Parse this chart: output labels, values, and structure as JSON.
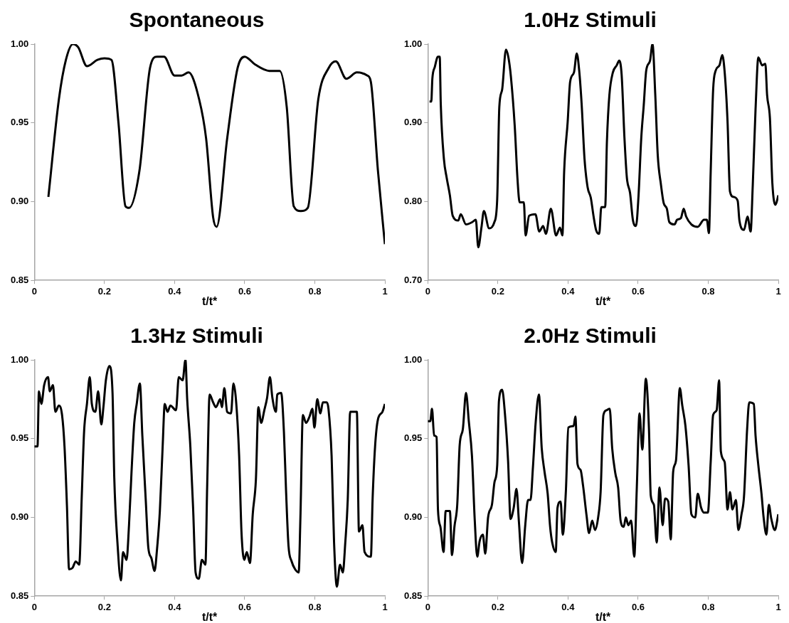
{
  "chart_data": [
    {
      "type": "line",
      "title": "Spontaneous",
      "xlabel": "t/t*",
      "color": "#000000",
      "marker": "none",
      "grid": false,
      "xlim": [
        0,
        1
      ],
      "xticks": [
        0,
        0.2,
        0.4,
        0.6,
        0.8,
        1
      ],
      "ylim": [
        0.85,
        1.0
      ],
      "yticks": [
        {
          "value": 0.85,
          "label": "0.85"
        },
        {
          "value": 0.9,
          "label": "0.90"
        },
        {
          "value": 0.95,
          "label": "0.95"
        },
        {
          "value": 1.0,
          "label": "1.00"
        }
      ],
      "x": [
        0.04,
        0.07,
        0.09,
        0.11,
        0.125,
        0.15,
        0.18,
        0.2,
        0.22,
        0.24,
        0.26,
        0.27,
        0.3,
        0.33,
        0.35,
        0.37,
        0.4,
        0.42,
        0.44,
        0.47,
        0.49,
        0.51,
        0.52,
        0.55,
        0.58,
        0.6,
        0.63,
        0.67,
        0.7,
        0.72,
        0.74,
        0.76,
        0.78,
        0.81,
        0.84,
        0.86,
        0.89,
        0.92,
        0.95,
        0.96,
        0.98,
        1.0
      ],
      "values": [
        0.903,
        0.965,
        0.99,
        1.0,
        0.998,
        0.986,
        0.99,
        0.991,
        0.99,
        0.95,
        0.897,
        0.896,
        0.92,
        0.985,
        0.992,
        0.992,
        0.98,
        0.98,
        0.982,
        0.965,
        0.94,
        0.89,
        0.884,
        0.94,
        0.985,
        0.992,
        0.987,
        0.983,
        0.983,
        0.96,
        0.897,
        0.894,
        0.896,
        0.965,
        0.985,
        0.989,
        0.978,
        0.982,
        0.98,
        0.976,
        0.92,
        0.873
      ]
    },
    {
      "type": "line",
      "title": "1.0Hz Stimuli",
      "xlabel": "t/t*",
      "color": "#000000",
      "marker": "none",
      "grid": false,
      "xlim": [
        0,
        1
      ],
      "xticks": [
        0,
        0.2,
        0.4,
        0.6,
        0.8,
        1
      ],
      "ylim": [
        0.7,
        1.0
      ],
      "yticks": [
        {
          "value": 0.7,
          "label": "0.70"
        },
        {
          "value": 0.8,
          "label": "0.80"
        },
        {
          "value": 0.9,
          "label": "0.90"
        },
        {
          "value": 1.0,
          "label": "1.00"
        }
      ],
      "x": [
        0.005,
        0.01,
        0.013,
        0.02,
        0.029,
        0.034,
        0.037,
        0.046,
        0.054,
        0.063,
        0.071,
        0.087,
        0.094,
        0.109,
        0.127,
        0.137,
        0.144,
        0.153,
        0.16,
        0.175,
        0.19,
        0.198,
        0.204,
        0.212,
        0.223,
        0.23,
        0.237,
        0.248,
        0.256,
        0.262,
        0.274,
        0.279,
        0.289,
        0.307,
        0.318,
        0.329,
        0.337,
        0.351,
        0.366,
        0.377,
        0.384,
        0.389,
        0.399,
        0.406,
        0.417,
        0.425,
        0.432,
        0.439,
        0.447,
        0.456,
        0.465,
        0.473,
        0.48,
        0.489,
        0.495,
        0.506,
        0.511,
        0.518,
        0.528,
        0.539,
        0.546,
        0.553,
        0.561,
        0.568,
        0.577,
        0.585,
        0.594,
        0.601,
        0.609,
        0.616,
        0.623,
        0.634,
        0.641,
        0.649,
        0.656,
        0.665,
        0.673,
        0.682,
        0.689,
        0.704,
        0.711,
        0.722,
        0.73,
        0.737,
        0.752,
        0.77,
        0.788,
        0.796,
        0.802,
        0.807,
        0.814,
        0.821,
        0.832,
        0.84,
        0.847,
        0.855,
        0.862,
        0.872,
        0.884,
        0.889,
        0.902,
        0.912,
        0.921,
        0.927,
        0.935,
        0.943,
        0.954,
        0.963,
        0.968,
        0.976,
        0.983,
        0.992,
        1.0
      ],
      "values": [
        0.927,
        0.927,
        0.956,
        0.971,
        0.984,
        0.984,
        0.924,
        0.854,
        0.83,
        0.808,
        0.782,
        0.776,
        0.784,
        0.771,
        0.774,
        0.777,
        0.742,
        0.767,
        0.788,
        0.766,
        0.774,
        0.803,
        0.92,
        0.942,
        0.993,
        0.983,
        0.959,
        0.896,
        0.828,
        0.799,
        0.799,
        0.757,
        0.782,
        0.784,
        0.762,
        0.769,
        0.759,
        0.791,
        0.757,
        0.767,
        0.757,
        0.838,
        0.901,
        0.952,
        0.964,
        0.988,
        0.966,
        0.923,
        0.855,
        0.818,
        0.805,
        0.781,
        0.764,
        0.759,
        0.793,
        0.793,
        0.876,
        0.935,
        0.964,
        0.973,
        0.979,
        0.961,
        0.881,
        0.83,
        0.811,
        0.777,
        0.769,
        0.806,
        0.881,
        0.922,
        0.966,
        0.979,
        1.0,
        0.935,
        0.859,
        0.822,
        0.798,
        0.791,
        0.774,
        0.771,
        0.777,
        0.779,
        0.791,
        0.781,
        0.771,
        0.768,
        0.777,
        0.777,
        0.76,
        0.837,
        0.942,
        0.966,
        0.973,
        0.986,
        0.964,
        0.903,
        0.813,
        0.806,
        0.801,
        0.776,
        0.764,
        0.781,
        0.762,
        0.82,
        0.917,
        0.983,
        0.973,
        0.975,
        0.935,
        0.906,
        0.823,
        0.796,
        0.808
      ]
    },
    {
      "type": "line",
      "title": "1.3Hz Stimuli",
      "xlabel": "t/t*",
      "color": "#000000",
      "marker": "none",
      "grid": false,
      "xlim": [
        0,
        1
      ],
      "xticks": [
        0,
        0.2,
        0.4,
        0.6,
        0.8,
        1
      ],
      "ylim": [
        0.85,
        1.0
      ],
      "yticks": [
        {
          "value": 0.85,
          "label": "0.85"
        },
        {
          "value": 0.9,
          "label": "0.90"
        },
        {
          "value": 0.95,
          "label": "0.95"
        },
        {
          "value": 1.0,
          "label": "1.00"
        }
      ],
      "x": [
        0,
        0.009,
        0.013,
        0.02,
        0.028,
        0.039,
        0.044,
        0.053,
        0.06,
        0.07,
        0.079,
        0.086,
        0.093,
        0.099,
        0.109,
        0.118,
        0.128,
        0.135,
        0.142,
        0.15,
        0.158,
        0.164,
        0.174,
        0.182,
        0.191,
        0.197,
        0.204,
        0.214,
        0.223,
        0.228,
        0.237,
        0.247,
        0.253,
        0.263,
        0.27,
        0.277,
        0.285,
        0.292,
        0.301,
        0.308,
        0.318,
        0.325,
        0.334,
        0.343,
        0.35,
        0.358,
        0.366,
        0.372,
        0.38,
        0.388,
        0.404,
        0.412,
        0.423,
        0.431,
        0.436,
        0.445,
        0.453,
        0.46,
        0.469,
        0.478,
        0.488,
        0.493,
        0.5,
        0.51,
        0.518,
        0.53,
        0.535,
        0.542,
        0.55,
        0.561,
        0.568,
        0.575,
        0.584,
        0.591,
        0.599,
        0.606,
        0.615,
        0.623,
        0.632,
        0.639,
        0.647,
        0.656,
        0.664,
        0.672,
        0.679,
        0.689,
        0.693,
        0.704,
        0.712,
        0.718,
        0.725,
        0.734,
        0.744,
        0.754,
        0.759,
        0.766,
        0.775,
        0.785,
        0.793,
        0.799,
        0.807,
        0.816,
        0.823,
        0.834,
        0.839,
        0.848,
        0.855,
        0.863,
        0.872,
        0.88,
        0.887,
        0.894,
        0.901,
        0.92,
        0.926,
        0.936,
        0.942,
        0.96,
        0.965,
        0.972,
        0.98,
        0.993,
        1.0
      ],
      "values": [
        0.945,
        0.945,
        0.98,
        0.972,
        0.984,
        0.989,
        0.98,
        0.984,
        0.967,
        0.971,
        0.965,
        0.945,
        0.907,
        0.867,
        0.868,
        0.872,
        0.87,
        0.912,
        0.955,
        0.972,
        0.989,
        0.972,
        0.967,
        0.98,
        0.959,
        0.97,
        0.987,
        0.996,
        0.979,
        0.925,
        0.884,
        0.86,
        0.878,
        0.873,
        0.895,
        0.928,
        0.96,
        0.972,
        0.985,
        0.952,
        0.91,
        0.881,
        0.874,
        0.866,
        0.88,
        0.904,
        0.945,
        0.972,
        0.967,
        0.971,
        0.968,
        0.989,
        0.987,
        1.0,
        0.975,
        0.945,
        0.905,
        0.865,
        0.861,
        0.873,
        0.87,
        0.92,
        0.978,
        0.973,
        0.97,
        0.975,
        0.97,
        0.982,
        0.967,
        0.966,
        0.985,
        0.975,
        0.94,
        0.89,
        0.873,
        0.878,
        0.871,
        0.902,
        0.924,
        0.97,
        0.96,
        0.968,
        0.976,
        0.989,
        0.976,
        0.967,
        0.978,
        0.979,
        0.954,
        0.917,
        0.882,
        0.872,
        0.867,
        0.865,
        0.9,
        0.965,
        0.96,
        0.964,
        0.969,
        0.957,
        0.975,
        0.966,
        0.973,
        0.973,
        0.969,
        0.939,
        0.884,
        0.856,
        0.87,
        0.865,
        0.884,
        0.911,
        0.967,
        0.967,
        0.891,
        0.895,
        0.878,
        0.875,
        0.912,
        0.945,
        0.962,
        0.967,
        0.972
      ]
    },
    {
      "type": "line",
      "title": "2.0Hz Stimuli",
      "xlabel": "t/t*",
      "color": "#000000",
      "marker": "none",
      "grid": false,
      "xlim": [
        0,
        1
      ],
      "xticks": [
        0,
        0.2,
        0.4,
        0.6,
        0.8,
        1
      ],
      "ylim": [
        0.85,
        1.0
      ],
      "yticks": [
        {
          "value": 0.85,
          "label": "0.85"
        },
        {
          "value": 0.9,
          "label": "0.90"
        },
        {
          "value": 0.95,
          "label": "0.95"
        },
        {
          "value": 1.0,
          "label": "1.00"
        }
      ],
      "x": [
        0,
        0.007,
        0.012,
        0.018,
        0.025,
        0.029,
        0.036,
        0.045,
        0.051,
        0.063,
        0.069,
        0.076,
        0.084,
        0.091,
        0.1,
        0.109,
        0.117,
        0.126,
        0.134,
        0.141,
        0.148,
        0.157,
        0.164,
        0.172,
        0.183,
        0.19,
        0.198,
        0.203,
        0.212,
        0.22,
        0.229,
        0.236,
        0.245,
        0.253,
        0.26,
        0.269,
        0.278,
        0.286,
        0.293,
        0.3,
        0.308,
        0.317,
        0.325,
        0.333,
        0.342,
        0.349,
        0.355,
        0.365,
        0.37,
        0.379,
        0.385,
        0.394,
        0.401,
        0.416,
        0.421,
        0.427,
        0.436,
        0.443,
        0.453,
        0.46,
        0.469,
        0.477,
        0.486,
        0.493,
        0.501,
        0.51,
        0.519,
        0.526,
        0.535,
        0.543,
        0.55,
        0.559,
        0.565,
        0.572,
        0.58,
        0.589,
        0.596,
        0.604,
        0.612,
        0.622,
        0.631,
        0.636,
        0.645,
        0.653,
        0.661,
        0.67,
        0.677,
        0.686,
        0.693,
        0.7,
        0.708,
        0.719,
        0.726,
        0.735,
        0.744,
        0.752,
        0.763,
        0.77,
        0.78,
        0.788,
        0.799,
        0.807,
        0.814,
        0.824,
        0.831,
        0.836,
        0.847,
        0.855,
        0.862,
        0.869,
        0.879,
        0.886,
        0.895,
        0.902,
        0.911,
        0.917,
        0.93,
        0.935,
        0.943,
        0.952,
        0.958,
        0.966,
        0.973,
        0.98,
        0.99,
        1.0
      ],
      "values": [
        0.961,
        0.961,
        0.969,
        0.952,
        0.951,
        0.905,
        0.894,
        0.878,
        0.904,
        0.904,
        0.876,
        0.894,
        0.908,
        0.946,
        0.956,
        0.979,
        0.961,
        0.939,
        0.898,
        0.875,
        0.885,
        0.889,
        0.877,
        0.9,
        0.908,
        0.922,
        0.933,
        0.974,
        0.981,
        0.966,
        0.936,
        0.899,
        0.906,
        0.918,
        0.897,
        0.871,
        0.895,
        0.911,
        0.911,
        0.932,
        0.961,
        0.978,
        0.944,
        0.929,
        0.915,
        0.894,
        0.884,
        0.878,
        0.906,
        0.91,
        0.889,
        0.917,
        0.957,
        0.958,
        0.964,
        0.934,
        0.93,
        0.92,
        0.901,
        0.89,
        0.898,
        0.892,
        0.9,
        0.916,
        0.965,
        0.968,
        0.969,
        0.944,
        0.928,
        0.919,
        0.898,
        0.894,
        0.9,
        0.895,
        0.898,
        0.875,
        0.917,
        0.966,
        0.943,
        0.988,
        0.956,
        0.914,
        0.908,
        0.884,
        0.919,
        0.895,
        0.912,
        0.91,
        0.886,
        0.929,
        0.936,
        0.982,
        0.971,
        0.958,
        0.933,
        0.902,
        0.9,
        0.915,
        0.906,
        0.903,
        0.903,
        0.935,
        0.965,
        0.968,
        0.987,
        0.942,
        0.935,
        0.905,
        0.916,
        0.905,
        0.911,
        0.892,
        0.902,
        0.913,
        0.956,
        0.973,
        0.972,
        0.952,
        0.933,
        0.915,
        0.9,
        0.889,
        0.908,
        0.899,
        0.892,
        0.902
      ]
    }
  ]
}
